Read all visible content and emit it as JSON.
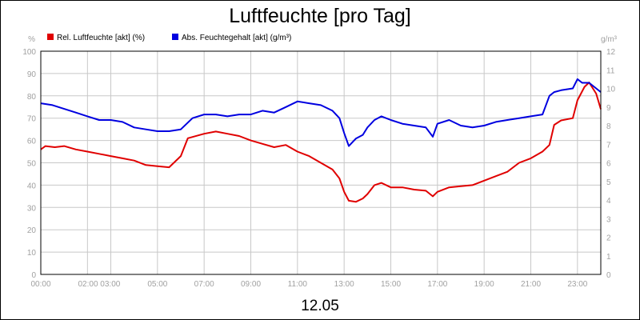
{
  "chart_data": {
    "type": "line",
    "title": "Luftfeuchte [pro Tag]",
    "footer": "12.05",
    "y_left_unit": "%",
    "y_right_unit": "g/m³",
    "y_left_range": [
      0,
      100
    ],
    "y_right_range": [
      0,
      12
    ],
    "y_left_ticks": [
      0,
      10,
      20,
      30,
      40,
      50,
      60,
      70,
      80,
      90,
      100
    ],
    "y_right_ticks": [
      0,
      1,
      2,
      3,
      4,
      5,
      6,
      7,
      8,
      9,
      10,
      11,
      12
    ],
    "x_range": [
      0,
      24
    ],
    "x_ticks": [
      {
        "x": 0,
        "label": "00:00"
      },
      {
        "x": 2.5,
        "label": "02:00 03:00"
      },
      {
        "x": 5,
        "label": "05:00"
      },
      {
        "x": 7,
        "label": "07:00"
      },
      {
        "x": 9,
        "label": "09:00"
      },
      {
        "x": 11,
        "label": "11:00"
      },
      {
        "x": 13,
        "label": "13:00"
      },
      {
        "x": 15,
        "label": "15:00"
      },
      {
        "x": 17,
        "label": "17:00"
      },
      {
        "x": 19,
        "label": "19:00"
      },
      {
        "x": 21,
        "label": "21:00"
      },
      {
        "x": 23,
        "label": "23:00"
      }
    ],
    "grid_x": [
      0,
      2,
      3,
      5,
      7,
      9,
      11,
      13,
      15,
      17,
      19,
      21,
      23
    ],
    "grid": true,
    "legend_position": "top-left",
    "series": [
      {
        "name": "Rel. Luftfeuchte [akt] (%)",
        "axis": "left",
        "color": "#e00000",
        "points": [
          [
            0,
            56
          ],
          [
            0.2,
            57.5
          ],
          [
            0.6,
            57
          ],
          [
            1,
            57.5
          ],
          [
            1.5,
            56
          ],
          [
            2,
            55
          ],
          [
            2.5,
            54
          ],
          [
            3,
            53
          ],
          [
            3.5,
            52
          ],
          [
            4,
            51
          ],
          [
            4.5,
            49
          ],
          [
            5,
            48.5
          ],
          [
            5.5,
            48
          ],
          [
            6,
            53
          ],
          [
            6.3,
            61
          ],
          [
            7,
            63
          ],
          [
            7.5,
            64
          ],
          [
            8,
            63
          ],
          [
            8.5,
            62
          ],
          [
            9,
            60
          ],
          [
            9.5,
            58.5
          ],
          [
            10,
            57
          ],
          [
            10.5,
            58
          ],
          [
            11,
            55
          ],
          [
            11.5,
            53
          ],
          [
            12,
            50
          ],
          [
            12.5,
            47
          ],
          [
            12.8,
            43
          ],
          [
            13,
            37
          ],
          [
            13.2,
            33
          ],
          [
            13.5,
            32.5
          ],
          [
            13.8,
            34
          ],
          [
            14,
            36
          ],
          [
            14.3,
            40
          ],
          [
            14.6,
            41
          ],
          [
            15,
            39
          ],
          [
            15.5,
            39
          ],
          [
            16,
            38
          ],
          [
            16.5,
            37.5
          ],
          [
            16.8,
            35
          ],
          [
            17,
            37
          ],
          [
            17.5,
            39
          ],
          [
            18,
            39.5
          ],
          [
            18.5,
            40
          ],
          [
            19,
            42
          ],
          [
            19.5,
            44
          ],
          [
            20,
            46
          ],
          [
            20.5,
            50
          ],
          [
            21,
            52
          ],
          [
            21.5,
            55
          ],
          [
            21.8,
            58
          ],
          [
            22,
            67
          ],
          [
            22.3,
            69
          ],
          [
            22.8,
            70
          ],
          [
            23,
            78
          ],
          [
            23.3,
            84
          ],
          [
            23.5,
            86
          ],
          [
            23.8,
            81
          ],
          [
            24,
            74
          ]
        ]
      },
      {
        "name": "Abs. Feuchtegehalt [akt] (g/m³)",
        "axis": "right",
        "color": "#0000e0",
        "points": [
          [
            0,
            9.2
          ],
          [
            0.5,
            9.1
          ],
          [
            1,
            8.9
          ],
          [
            1.5,
            8.7
          ],
          [
            2,
            8.5
          ],
          [
            2.5,
            8.3
          ],
          [
            3,
            8.3
          ],
          [
            3.5,
            8.2
          ],
          [
            4,
            7.9
          ],
          [
            4.5,
            7.8
          ],
          [
            5,
            7.7
          ],
          [
            5.5,
            7.7
          ],
          [
            6,
            7.8
          ],
          [
            6.5,
            8.4
          ],
          [
            7,
            8.6
          ],
          [
            7.5,
            8.6
          ],
          [
            8,
            8.5
          ],
          [
            8.5,
            8.6
          ],
          [
            9,
            8.6
          ],
          [
            9.5,
            8.8
          ],
          [
            10,
            8.7
          ],
          [
            10.5,
            9.0
          ],
          [
            11,
            9.3
          ],
          [
            11.5,
            9.2
          ],
          [
            12,
            9.1
          ],
          [
            12.5,
            8.8
          ],
          [
            12.8,
            8.4
          ],
          [
            13,
            7.6
          ],
          [
            13.2,
            6.9
          ],
          [
            13.5,
            7.3
          ],
          [
            13.8,
            7.5
          ],
          [
            14,
            7.9
          ],
          [
            14.3,
            8.3
          ],
          [
            14.6,
            8.5
          ],
          [
            15,
            8.3
          ],
          [
            15.5,
            8.1
          ],
          [
            16,
            8.0
          ],
          [
            16.5,
            7.9
          ],
          [
            16.8,
            7.4
          ],
          [
            17,
            8.1
          ],
          [
            17.5,
            8.3
          ],
          [
            18,
            8.0
          ],
          [
            18.5,
            7.9
          ],
          [
            19,
            8.0
          ],
          [
            19.5,
            8.2
          ],
          [
            20,
            8.3
          ],
          [
            20.5,
            8.4
          ],
          [
            21,
            8.5
          ],
          [
            21.5,
            8.6
          ],
          [
            21.8,
            9.6
          ],
          [
            22,
            9.8
          ],
          [
            22.3,
            9.9
          ],
          [
            22.8,
            10.0
          ],
          [
            23,
            10.5
          ],
          [
            23.2,
            10.3
          ],
          [
            23.5,
            10.3
          ],
          [
            23.8,
            10.0
          ],
          [
            24,
            9.8
          ]
        ]
      }
    ]
  },
  "colors": {
    "grid": "#c8c8c8",
    "axis_text": "#a0a0a0",
    "plot_border": "#000000"
  }
}
